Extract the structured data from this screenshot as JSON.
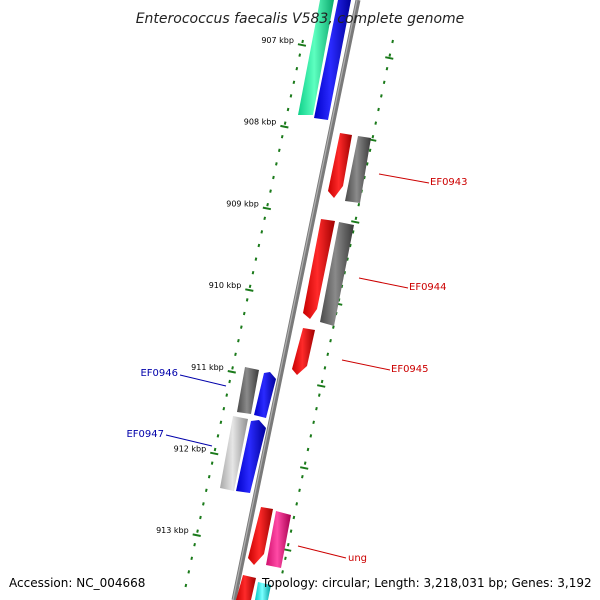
{
  "title": "Enterococcus faecalis V583, complete genome",
  "footer": {
    "accession": "Accession: NC_004668",
    "topology": "Topology: circular; Length: 3,218,031 bp; Genes: 3,192"
  },
  "colors": {
    "backbone": "#808080",
    "scale_ticks": "#1a7a1a",
    "forward_label": "#cc0000",
    "reverse_label": "#0000aa"
  },
  "scale_ticks": [
    {
      "label": "907 kbp"
    },
    {
      "label": "908 kbp"
    },
    {
      "label": "909 kbp"
    },
    {
      "label": "910 kbp"
    },
    {
      "label": "911 kbp"
    },
    {
      "label": "912 kbp"
    },
    {
      "label": "913 kbp"
    }
  ],
  "gene_labels": [
    {
      "name": "EF0943",
      "strand": "forward"
    },
    {
      "name": "EF0944",
      "strand": "forward"
    },
    {
      "name": "EF0945",
      "strand": "forward"
    },
    {
      "name": "EF0946",
      "strand": "reverse"
    },
    {
      "name": "EF0947",
      "strand": "reverse"
    },
    {
      "name": "ung",
      "strand": "forward"
    }
  ]
}
